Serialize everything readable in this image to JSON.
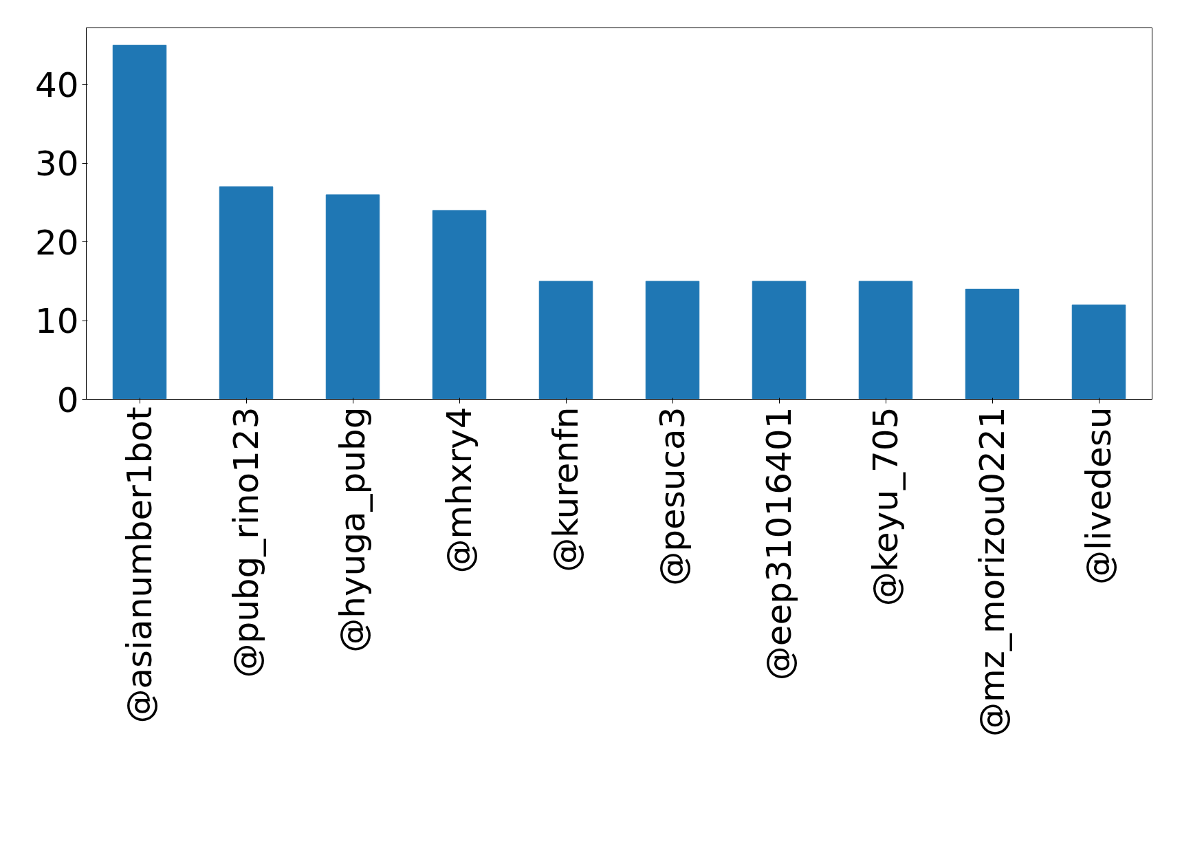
{
  "chart_data": {
    "type": "bar",
    "categories": [
      "@asianumber1bot",
      "@pubg_rino123",
      "@hyuga_pubg",
      "@mhxry4",
      "@kurenfn",
      "@pesuca3",
      "@eep31016401",
      "@keyu_705",
      "@mz_morizou0221",
      "@livedesu"
    ],
    "values": [
      45,
      27,
      26,
      24,
      15,
      15,
      15,
      15,
      14,
      12
    ],
    "color": "#1f77b4",
    "ylim": [
      0,
      47.2
    ],
    "yticks": [
      0,
      10,
      20,
      30,
      40
    ],
    "grid": false
  }
}
